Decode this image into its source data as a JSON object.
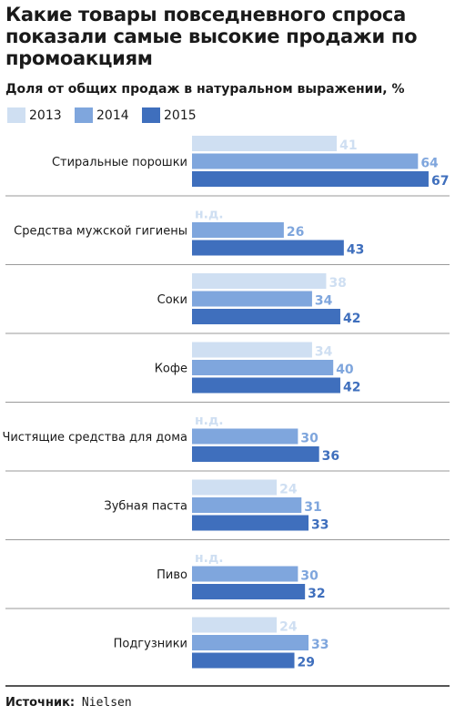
{
  "title": "Какие товары повседневного спроса показали самые высокие продажи по промоакциям",
  "subtitle": "Доля от общих продаж в натуральном выражении, %",
  "legend": [
    {
      "label": "2013",
      "color": "#cfdff2"
    },
    {
      "label": "2014",
      "color": "#7fa6dd"
    },
    {
      "label": "2015",
      "color": "#3f6fbd"
    }
  ],
  "source": {
    "label": "Источник:",
    "value": "Nielsen"
  },
  "chart_data": {
    "type": "bar",
    "orientation": "horizontal",
    "categories": [
      "Стиральные порошки",
      "Средства мужской гигиены",
      "Соки",
      "Кофе",
      "Чистящие средства для дома",
      "Зубная паста",
      "Пиво",
      "Подгузники"
    ],
    "series": [
      {
        "name": "2013",
        "values": [
          41,
          null,
          38,
          34,
          null,
          24,
          null,
          24
        ],
        "labels": [
          "41",
          "н.д.",
          "38",
          "34",
          "н.д.",
          "24",
          "н.д.",
          "24"
        ]
      },
      {
        "name": "2014",
        "values": [
          64,
          26,
          34,
          40,
          30,
          31,
          30,
          33
        ],
        "labels": [
          "64",
          "26",
          "34",
          "40",
          "30",
          "31",
          "30",
          "33"
        ]
      },
      {
        "name": "2015",
        "values": [
          67,
          43,
          42,
          42,
          36,
          33,
          32,
          29
        ],
        "labels": [
          "67",
          "43",
          "42",
          "42",
          "36",
          "33",
          "32",
          "29"
        ]
      }
    ],
    "xlim": [
      0,
      67
    ],
    "grid": false,
    "legend_position": "top-left"
  }
}
